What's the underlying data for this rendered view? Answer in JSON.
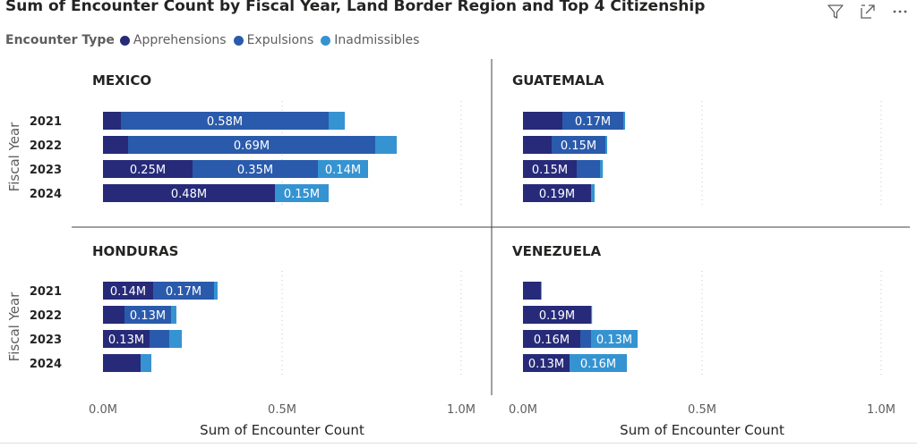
{
  "header": {
    "title": "Sum of Encounter Count by Fiscal Year, Land Border Region and Top 4 Citizenship",
    "icons": [
      "filter-icon",
      "focus-mode-icon",
      "more-options-icon"
    ]
  },
  "legend": {
    "title": "Encounter Type",
    "items": [
      {
        "label": "Apprehensions",
        "color": "#262a79"
      },
      {
        "label": "Expulsions",
        "color": "#2a5aab"
      },
      {
        "label": "Inadmissibles",
        "color": "#3593d2"
      }
    ]
  },
  "chart_data": {
    "type": "bar",
    "orientation": "horizontal",
    "stacked": true,
    "title": "Sum of Encounter Count by Fiscal Year, Land Border Region and Top 4 Citizenship",
    "xlabel": "Sum of Encounter Count",
    "ylabel": "Fiscal Year",
    "xlim": [
      0,
      1000000
    ],
    "xticks": [
      0,
      500000,
      1000000
    ],
    "xtick_labels": [
      "0.0M",
      "0.5M",
      "1.0M"
    ],
    "categories": [
      "2021",
      "2022",
      "2023",
      "2024"
    ],
    "series_names": [
      "Apprehensions",
      "Expulsions",
      "Inadmissibles"
    ],
    "series_colors": [
      "#262a79",
      "#2a5aab",
      "#3593d2"
    ],
    "panels": [
      {
        "name": "MEXICO",
        "values": [
          [
            50000,
            580000,
            45000
          ],
          [
            70000,
            690000,
            60000
          ],
          [
            250000,
            350000,
            140000
          ],
          [
            480000,
            0,
            150000
          ]
        ],
        "labels": [
          [
            "",
            "0.58M",
            ""
          ],
          [
            "",
            "0.69M",
            ""
          ],
          [
            "0.25M",
            "0.35M",
            "0.14M"
          ],
          [
            "0.48M",
            "",
            "0.15M"
          ]
        ]
      },
      {
        "name": "GUATEMALA",
        "values": [
          [
            110000,
            170000,
            5000
          ],
          [
            80000,
            150000,
            5000
          ],
          [
            150000,
            65000,
            8000
          ],
          [
            190000,
            0,
            10000
          ]
        ],
        "labels": [
          [
            "",
            "0.17M",
            ""
          ],
          [
            "",
            "0.15M",
            ""
          ],
          [
            "0.15M",
            "",
            ""
          ],
          [
            "0.19M",
            "",
            ""
          ]
        ]
      },
      {
        "name": "HONDURAS",
        "values": [
          [
            140000,
            170000,
            10000
          ],
          [
            60000,
            130000,
            15000
          ],
          [
            130000,
            55000,
            35000
          ],
          [
            105000,
            0,
            30000
          ]
        ],
        "labels": [
          [
            "0.14M",
            "0.17M",
            ""
          ],
          [
            "",
            "0.13M",
            ""
          ],
          [
            "0.13M",
            "",
            ""
          ],
          [
            "",
            "",
            ""
          ]
        ]
      },
      {
        "name": "VENEZUELA",
        "values": [
          [
            50000,
            0,
            2000
          ],
          [
            190000,
            0,
            3000
          ],
          [
            160000,
            30000,
            130000
          ],
          [
            130000,
            0,
            160000
          ]
        ],
        "labels": [
          [
            "",
            "",
            ""
          ],
          [
            "0.19M",
            "",
            ""
          ],
          [
            "0.16M",
            "",
            "0.13M"
          ],
          [
            "0.13M",
            "",
            "0.16M"
          ]
        ]
      }
    ]
  }
}
